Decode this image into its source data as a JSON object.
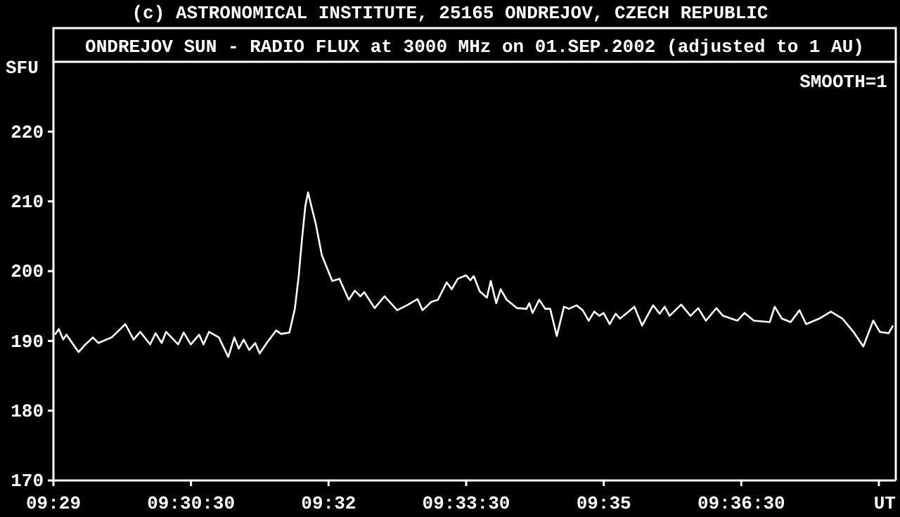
{
  "chart_data": {
    "type": "line",
    "title": "ONDREJOV SUN - RADIO FLUX at 3000 MHz on 01.SEP.2002 (adjusted to 1 AU)",
    "ylabel": "SFU",
    "annotations": [
      "(c) ASTRONOMICAL INSTITUTE, 25165 ONDREJOV, CZECH REPUBLIC",
      "SMOOTH=1"
    ],
    "xlim": [
      9.48333,
      9.6364
    ],
    "ylim": [
      170,
      230
    ],
    "xticks": [
      {
        "value": 9.48333,
        "label": "09:29"
      },
      {
        "value": 9.50833,
        "label": "09:30:30"
      },
      {
        "value": 9.53333,
        "label": "09:32"
      },
      {
        "value": 9.55833,
        "label": "09:33:30"
      },
      {
        "value": 9.58333,
        "label": "09:35"
      },
      {
        "value": 9.60833,
        "label": "09:36:30"
      },
      {
        "value": 9.63333,
        "label": "UT"
      }
    ],
    "yticks": [
      170,
      180,
      190,
      200,
      210,
      220
    ],
    "grid": false,
    "marker": "none",
    "line_style": "solid",
    "series": [
      {
        "color": "#ffffff",
        "x": [
          9.4836,
          9.4843,
          9.4851,
          9.4857,
          9.4879,
          9.4889,
          9.4905,
          9.4915,
          9.4939,
          9.4964,
          9.4979,
          9.4991,
          9.5009,
          9.5019,
          9.503,
          9.5038,
          9.506,
          9.507,
          9.5083,
          9.5098,
          9.5106,
          9.5116,
          9.5134,
          9.5151,
          9.5162,
          9.517,
          9.5179,
          9.5189,
          9.52,
          9.5208,
          9.5221,
          9.5238,
          9.5247,
          9.5262,
          9.5272,
          9.5279,
          9.5285,
          9.5291,
          9.5296,
          9.5302,
          9.531,
          9.5321,
          9.534,
          9.5353,
          9.537,
          9.5381,
          9.5391,
          9.5398,
          9.5417,
          9.5435,
          9.5458,
          9.5478,
          9.5495,
          9.5504,
          9.552,
          9.5532,
          9.5548,
          9.5557,
          9.5568,
          9.5583,
          9.5591,
          9.5597,
          9.5608,
          9.5621,
          9.5628,
          9.5638,
          9.5646,
          9.5657,
          9.5676,
          9.5693,
          9.5698,
          9.5704,
          9.5716,
          9.5727,
          9.5736,
          9.5748,
          9.5761,
          9.577,
          9.5784,
          9.5795,
          9.5806,
          9.5816,
          9.5825,
          9.5833,
          9.5844,
          9.5855,
          9.5863,
          9.5889,
          9.5903,
          9.5923,
          9.5935,
          9.5944,
          9.5953,
          9.5974,
          9.5991,
          9.6005,
          9.6019,
          9.6038,
          9.605,
          9.6076,
          9.6089,
          9.6106,
          9.6135,
          9.6144,
          9.6157,
          9.6173,
          9.6189,
          9.6201,
          9.6225,
          9.6246,
          9.6267,
          9.6288,
          9.6305,
          9.6323,
          9.6335,
          9.6351,
          9.6359
        ],
        "values": [
          190.9,
          191.7,
          190.2,
          190.9,
          188.4,
          189.3,
          190.5,
          189.7,
          190.5,
          192.4,
          190.2,
          191.3,
          189.5,
          191.1,
          189.7,
          191.3,
          189.5,
          191.2,
          189.5,
          190.9,
          189.5,
          191.3,
          190.5,
          187.7,
          190.5,
          188.9,
          190.2,
          188.7,
          189.7,
          188.2,
          189.7,
          191.5,
          191.0,
          191.2,
          194.6,
          199.3,
          204.6,
          209.3,
          211.3,
          209.3,
          206.8,
          202.3,
          198.6,
          198.9,
          195.9,
          197.2,
          196.4,
          197.0,
          194.7,
          196.4,
          194.4,
          195.2,
          196.0,
          194.4,
          195.6,
          195.9,
          198.4,
          197.4,
          198.9,
          199.4,
          198.7,
          199.3,
          197.1,
          196.2,
          198.6,
          195.4,
          197.4,
          195.9,
          194.7,
          194.6,
          195.4,
          194.0,
          195.9,
          194.6,
          194.6,
          190.7,
          194.9,
          194.6,
          195.1,
          194.4,
          192.9,
          194.2,
          193.6,
          194.0,
          192.4,
          193.9,
          193.2,
          194.9,
          192.2,
          195.1,
          193.9,
          194.9,
          193.6,
          195.2,
          193.6,
          194.7,
          192.9,
          194.7,
          193.6,
          192.9,
          194.0,
          192.9,
          192.7,
          194.9,
          193.2,
          192.7,
          194.4,
          192.4,
          193.2,
          194.2,
          193.2,
          191.2,
          189.2,
          192.9,
          191.3,
          191.1,
          192.2
        ]
      }
    ]
  }
}
